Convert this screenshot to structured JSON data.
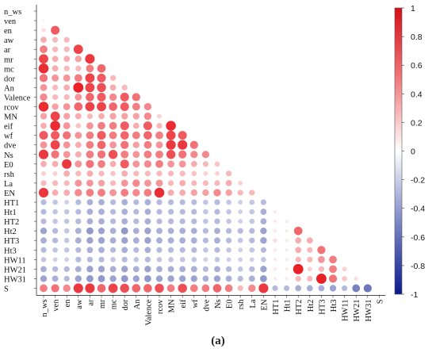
{
  "chart_data": {
    "type": "heatmap",
    "subtype": "lower-triangular correlation matrix drawn as circles (size and colour encode r)",
    "variables": [
      "n_ws",
      "ven",
      "en",
      "aw",
      "ar",
      "mr",
      "mc",
      "dor",
      "An",
      "Valence",
      "rcov",
      "MN",
      "eif",
      "wf",
      "dve",
      "Ns",
      "E0",
      "rsh",
      "La",
      "EN",
      "HT1",
      "Ht1",
      "HT2",
      "Ht2",
      "HT3",
      "Ht3",
      "HW11",
      "HW21",
      "HW31",
      "S"
    ],
    "value_range": [
      -1,
      1
    ],
    "colorbar_ticks": [
      1,
      0.8,
      0.6,
      0.4,
      0.2,
      0,
      -0.2,
      -0.4,
      -0.6,
      -0.8,
      -1
    ],
    "colors": {
      "positive": "#e8141c",
      "neutral": "#ffffff",
      "negative": "#0a1a8c"
    },
    "grid": false,
    "legend": "colorbar right",
    "values": {
      "ven": [
        0.05
      ],
      "en": [
        0.15,
        0.7
      ],
      "aw": [
        0.35,
        0.3,
        0.3
      ],
      "ar": [
        0.55,
        0.3,
        0.3,
        0.8
      ],
      "mr": [
        0.8,
        0.35,
        0.35,
        0.4,
        0.85
      ],
      "mc": [
        0.9,
        0.35,
        0.3,
        0.3,
        0.55,
        0.65
      ],
      "dor": [
        0.6,
        0.45,
        0.45,
        0.55,
        0.8,
        0.7,
        0.3
      ],
      "An": [
        0.45,
        0.3,
        0.35,
        0.95,
        0.8,
        0.75,
        0.35,
        0.3
      ],
      "Valence": [
        0.5,
        0.3,
        0.3,
        0.45,
        0.65,
        0.7,
        0.5,
        0.7,
        0.6
      ],
      "rcov": [
        0.9,
        0.4,
        0.45,
        0.65,
        0.8,
        0.8,
        0.65,
        0.7,
        0.55,
        0.5
      ],
      "MN": [
        0.4,
        0.8,
        0.4,
        0.35,
        0.3,
        0.35,
        0.4,
        0.4,
        0.4,
        0.5,
        0.2
      ],
      "eif": [
        0.35,
        0.9,
        0.45,
        0.25,
        0.45,
        0.55,
        0.55,
        0.7,
        0.35,
        0.7,
        0.3,
        0.9
      ],
      "wf": [
        0.7,
        0.7,
        0.6,
        0.45,
        0.55,
        0.7,
        0.55,
        0.65,
        0.55,
        0.65,
        0.55,
        0.8,
        0.7
      ],
      "dve": [
        0.45,
        0.8,
        0.45,
        0.35,
        0.55,
        0.65,
        0.45,
        0.6,
        0.4,
        0.55,
        0.45,
        0.85,
        0.85,
        0.6
      ],
      "Ns": [
        0.85,
        0.6,
        0.45,
        0.35,
        0.55,
        0.6,
        0.75,
        0.55,
        0.45,
        0.55,
        0.55,
        0.75,
        0.6,
        0.5,
        0.5
      ],
      "E0": [
        0.35,
        0.35,
        0.85,
        0.45,
        0.6,
        0.55,
        0.35,
        0.7,
        0.45,
        0.5,
        0.55,
        0.45,
        0.45,
        0.35,
        0.3,
        0.25
      ],
      "rsh": [
        0.2,
        0.2,
        0.35,
        0.3,
        0.35,
        0.3,
        0.25,
        0.35,
        0.3,
        0.3,
        0.3,
        0.3,
        0.3,
        0.25,
        0.2,
        0.2,
        0.3
      ],
      "La": [
        0.3,
        0.3,
        0.3,
        0.45,
        0.45,
        0.4,
        0.3,
        0.45,
        0.5,
        0.45,
        0.45,
        0.3,
        0.35,
        0.3,
        0.3,
        0.3,
        0.35,
        0.2
      ],
      "EN": [
        0.85,
        0.35,
        0.35,
        0.5,
        0.55,
        0.55,
        0.45,
        0.55,
        0.5,
        0.55,
        0.9,
        0.35,
        0.35,
        0.4,
        0.4,
        0.5,
        0.4,
        0.3,
        0.3
      ],
      "HT1": [
        -0.3,
        -0.25,
        -0.2,
        -0.3,
        -0.35,
        -0.35,
        -0.3,
        -0.35,
        -0.3,
        -0.35,
        -0.3,
        -0.3,
        -0.3,
        -0.3,
        -0.25,
        -0.3,
        -0.25,
        -0.2,
        -0.25,
        -0.3
      ],
      "Ht1": [
        -0.3,
        -0.25,
        -0.25,
        -0.3,
        -0.35,
        -0.35,
        -0.3,
        -0.35,
        -0.3,
        -0.35,
        -0.3,
        -0.3,
        -0.3,
        -0.3,
        -0.25,
        -0.3,
        -0.25,
        -0.2,
        -0.25,
        -0.35,
        0.1
      ],
      "HT2": [
        -0.3,
        -0.25,
        -0.25,
        -0.3,
        -0.35,
        -0.35,
        -0.3,
        -0.35,
        -0.3,
        -0.35,
        -0.3,
        -0.3,
        -0.3,
        -0.3,
        -0.25,
        -0.3,
        -0.25,
        -0.2,
        -0.25,
        -0.35,
        0.1,
        0.1
      ],
      "Ht2": [
        -0.4,
        -0.3,
        -0.25,
        -0.35,
        -0.45,
        -0.4,
        -0.35,
        -0.45,
        -0.35,
        -0.4,
        -0.35,
        -0.35,
        -0.35,
        -0.35,
        -0.3,
        -0.35,
        -0.3,
        -0.3,
        -0.3,
        -0.4,
        0.1,
        0.1,
        0.65
      ],
      "HT3": [
        -0.35,
        -0.3,
        -0.25,
        -0.35,
        -0.4,
        -0.4,
        -0.35,
        -0.4,
        -0.35,
        -0.4,
        -0.35,
        -0.35,
        -0.35,
        -0.35,
        -0.3,
        -0.35,
        -0.3,
        -0.25,
        -0.3,
        -0.4,
        0.15,
        0.1,
        0.35,
        0.35
      ],
      "Ht3": [
        -0.3,
        -0.25,
        -0.25,
        -0.3,
        -0.35,
        -0.35,
        -0.3,
        -0.35,
        -0.3,
        -0.35,
        -0.3,
        -0.3,
        -0.3,
        -0.3,
        -0.25,
        -0.3,
        -0.25,
        -0.2,
        -0.25,
        -0.3,
        0.1,
        0.1,
        0.35,
        0.3,
        0.6
      ],
      "HW11": [
        -0.25,
        -0.2,
        -0.2,
        -0.3,
        -0.3,
        -0.3,
        -0.25,
        -0.3,
        -0.25,
        -0.3,
        -0.25,
        -0.25,
        -0.25,
        -0.25,
        -0.2,
        -0.25,
        -0.2,
        -0.2,
        -0.2,
        -0.25,
        0.1,
        0.1,
        0.3,
        0.3,
        0.45,
        0.55
      ],
      "HW21": [
        -0.35,
        -0.3,
        -0.3,
        -0.35,
        -0.4,
        -0.4,
        -0.35,
        -0.4,
        -0.35,
        -0.4,
        -0.35,
        -0.35,
        -0.35,
        -0.35,
        -0.3,
        -0.35,
        -0.3,
        -0.25,
        -0.3,
        -0.4,
        0.1,
        0.1,
        0.95,
        0.2,
        0.3,
        0.55,
        0.2
      ],
      "HW31": [
        -0.4,
        -0.35,
        -0.3,
        -0.4,
        -0.45,
        -0.45,
        -0.4,
        -0.45,
        -0.4,
        -0.45,
        -0.4,
        -0.4,
        -0.4,
        -0.4,
        -0.35,
        -0.4,
        -0.35,
        -0.3,
        -0.35,
        -0.45,
        0.1,
        0.1,
        0.3,
        0.3,
        0.95,
        0.6,
        0.25,
        0.15
      ],
      "S": [
        0.55,
        0.6,
        0.5,
        0.85,
        0.85,
        0.65,
        0.8,
        0.75,
        0.65,
        0.65,
        0.75,
        0.55,
        0.75,
        0.55,
        0.55,
        0.65,
        0.55,
        0.3,
        0.5,
        0.85,
        -0.3,
        -0.3,
        -0.35,
        -0.35,
        -0.35,
        -0.4,
        -0.3,
        -0.55,
        -0.6
      ]
    }
  },
  "panel_label": "(a)"
}
